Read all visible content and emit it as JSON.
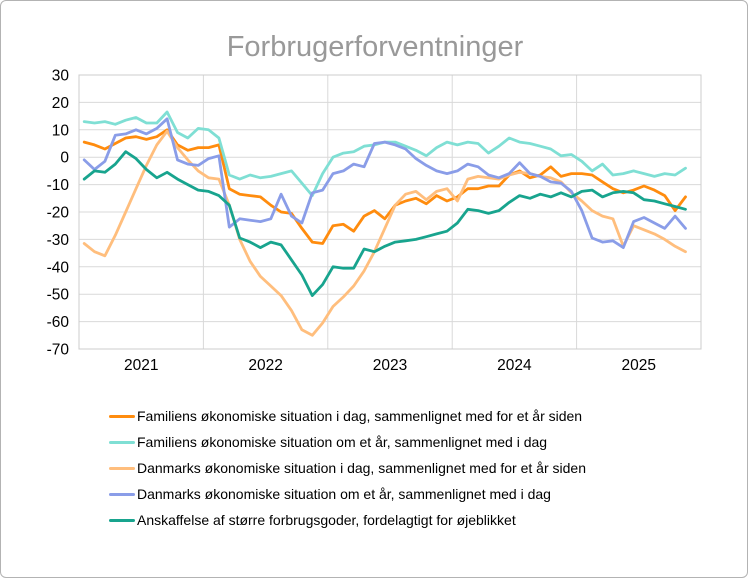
{
  "title": "Forbrugerforventninger",
  "colors": {
    "title_text": "#999999",
    "axis_text": "#000000",
    "gridline": "#d9d9d9",
    "plot_frame": "#cccccc",
    "canvas_border": "#b3b3b3",
    "background": "#ffffff"
  },
  "chart_data": {
    "type": "line",
    "title": "Forbrugerforventninger",
    "x_unit": "month",
    "x_start": "2021-01",
    "x_end": "2025-11",
    "x_slots": 60,
    "year_labels": [
      "2021",
      "2022",
      "2023",
      "2024",
      "2025"
    ],
    "xlabel": "",
    "ylabel": "",
    "ylim": [
      -70,
      30
    ],
    "yticks": [
      30,
      20,
      10,
      0,
      -10,
      -20,
      -30,
      -40,
      -50,
      -60,
      -70
    ],
    "grid": true,
    "legend_position": "bottom-left",
    "series": [
      {
        "name": "Familiens økonomiske situation i dag, sammenlignet med for et år siden",
        "color": "#ff8c0e",
        "values": [
          5.5,
          4.5,
          3,
          5,
          7,
          7.5,
          6.5,
          7.5,
          10,
          4.5,
          2.5,
          3.5,
          3.5,
          4.5,
          -11.5,
          -13.5,
          -14,
          -14.5,
          -17.5,
          -20,
          -20.5,
          -26,
          -31,
          -31.5,
          -25,
          -24.5,
          -27,
          -21.5,
          -19.5,
          -22.5,
          -17.5,
          -16,
          -15,
          -17,
          -14,
          -16,
          -14.5,
          -11.5,
          -11.5,
          -10.5,
          -10.5,
          -6.5,
          -5,
          -7.5,
          -6.5,
          -3.5,
          -7,
          -6,
          -6,
          -6.5,
          -9,
          -11.5,
          -13,
          -12,
          -10.5,
          -12,
          -14,
          -19.5,
          -14.5
        ]
      },
      {
        "name": "Familiens økonomiske  situation om et år, sammenlignet med i dag",
        "color": "#7fdfd4",
        "values": [
          13,
          12.5,
          13,
          12,
          13.5,
          14.5,
          12.5,
          12.5,
          16.5,
          9,
          7,
          10.5,
          10,
          7,
          -6.5,
          -8,
          -6.5,
          -7.5,
          -7,
          -6,
          -5,
          -9.5,
          -14,
          -6,
          0,
          1.5,
          2,
          4,
          4.5,
          5.5,
          5.5,
          4,
          2.5,
          0.5,
          3.5,
          5.5,
          4.5,
          5.5,
          5,
          1.5,
          4,
          7,
          5.5,
          5,
          4,
          3,
          0.5,
          1,
          -1.5,
          -5,
          -2.5,
          -6.5,
          -6,
          -5,
          -6,
          -7,
          -6,
          -6.5,
          -4
        ]
      },
      {
        "name": "Danmarks økonomiske situation i dag, sammenlignet med for et år siden",
        "color": "#ffbe7d",
        "values": [
          -31.5,
          -34.5,
          -36,
          -28.5,
          -20,
          -11.5,
          -3,
          4.5,
          9.5,
          3.5,
          -1,
          -5,
          -7.5,
          -8,
          -17.5,
          -30,
          -38,
          -43.5,
          -47,
          -50.5,
          -56,
          -63,
          -65,
          -60.5,
          -54.5,
          -51,
          -47,
          -41.5,
          -34.5,
          -26,
          -17.5,
          -13.5,
          -12.5,
          -15.5,
          -12.5,
          -11.5,
          -16,
          -8,
          -7,
          -7.5,
          -8,
          -6.5,
          -5.5,
          -6,
          -7,
          -7.5,
          -9,
          -13,
          -16,
          -19.5,
          -21.5,
          -22.5,
          -32.5,
          -25,
          -26.5,
          -28,
          -30,
          -32.5,
          -34.5
        ]
      },
      {
        "name": "Danmarks økonomiske situation om et år, sammenlignet med i dag",
        "color": "#8a9de8",
        "values": [
          -1,
          -4.5,
          -1.5,
          8,
          8.5,
          10,
          8.5,
          10.5,
          14,
          -1,
          -2.5,
          -3,
          -0.5,
          0.5,
          -25.5,
          -22.5,
          -23,
          -23.5,
          -22.5,
          -13.5,
          -21.5,
          -24,
          -13,
          -12,
          -6,
          -5,
          -2.5,
          -3.5,
          5,
          5.5,
          4.5,
          3,
          -0.5,
          -3,
          -5,
          -6,
          -5,
          -2.5,
          -3.5,
          -6.5,
          -7.5,
          -6,
          -2,
          -6,
          -7,
          -9,
          -9.5,
          -12.5,
          -19.5,
          -29.5,
          -31,
          -30.5,
          -33,
          -23.5,
          -22,
          -24,
          -26,
          -21.5,
          -26
        ]
      },
      {
        "name": "Anskaffelse af større forbrugsgoder, fordelagtigt for øjeblikket",
        "color": "#18a48e",
        "values": [
          -8,
          -5,
          -5.5,
          -2.5,
          2,
          -0.5,
          -4.5,
          -7.5,
          -5.5,
          -8,
          -10,
          -12,
          -12.5,
          -14,
          -17.5,
          -29.5,
          -31,
          -33,
          -31,
          -32,
          -37.5,
          -43,
          -50.5,
          -46.5,
          -40,
          -40.5,
          -40.5,
          -33.5,
          -34.5,
          -32.5,
          -31,
          -30.5,
          -30,
          -29,
          -28,
          -27,
          -24,
          -19,
          -19.5,
          -20.5,
          -19.5,
          -16.5,
          -14,
          -15,
          -13.5,
          -14.5,
          -13,
          -14.5,
          -12.5,
          -12,
          -14.5,
          -13,
          -12.5,
          -13,
          -15.5,
          -16,
          -17,
          -18,
          -19
        ]
      }
    ]
  }
}
